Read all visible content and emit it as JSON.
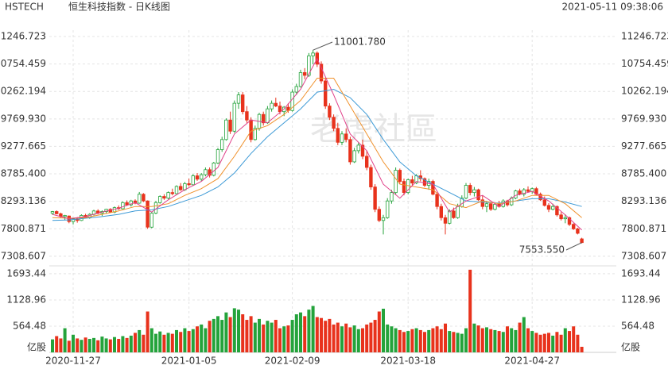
{
  "chart_data": {
    "type": "candlestick",
    "symbol": "HSTECH",
    "title": "恒生科技指数 - 日K线图",
    "timestamp": "2021-05-11 09:38:06",
    "watermark": "老虎社區",
    "up_color": "#24a33b",
    "down_color": "#e8321c",
    "grid": true,
    "ylim": [
      7165,
      11360
    ],
    "yticks": [
      11246.723,
      10754.459,
      10262.194,
      {
        "value": 9769.93,
        "label": "9769.930"
      },
      9277.665,
      {
        "value": 8785.4,
        "label": "8785.400"
      },
      8293.136,
      7800.871,
      7308.607
    ],
    "volume": {
      "ylim": [
        0,
        1846
      ],
      "yticks": [
        1693.44,
        1128.96,
        564.48
      ],
      "unit": "亿股",
      "values": [
        280,
        350,
        300,
        520,
        250,
        380,
        300,
        270,
        320,
        290,
        310,
        260,
        340,
        300,
        280,
        330,
        290,
        350,
        310,
        360,
        420,
        480,
        380,
        880,
        520,
        400,
        450,
        380,
        420,
        400,
        480,
        440,
        520,
        460,
        500,
        560,
        600,
        520,
        680,
        720,
        780,
        700,
        860,
        760,
        950,
        920,
        820,
        700,
        780,
        640,
        720,
        600,
        680,
        640,
        700,
        520,
        560,
        580,
        700,
        820,
        860,
        780,
        920,
        1000,
        760,
        740,
        680,
        720,
        600,
        640,
        560,
        620,
        540,
        580,
        500,
        520,
        600,
        640,
        700,
        880,
        940,
        600,
        560,
        520,
        480,
        440,
        460,
        500,
        520,
        480,
        440,
        480,
        520,
        560,
        500,
        620,
        460,
        440,
        420,
        400,
        520,
        1780,
        620,
        580,
        520,
        540,
        500,
        480,
        460,
        440,
        560,
        520,
        480,
        640,
        760,
        520,
        460,
        420,
        380,
        400,
        420,
        360,
        440,
        380,
        520,
        460,
        560,
        380,
        120
      ]
    },
    "categories": [
      null,
      null,
      null,
      null,
      null,
      "2020-11-27",
      null,
      null,
      null,
      null,
      null,
      null,
      null,
      null,
      null,
      null,
      null,
      null,
      null,
      null,
      null,
      null,
      null,
      null,
      null,
      null,
      null,
      null,
      null,
      null,
      null,
      null,
      null,
      "2021-01-05",
      null,
      null,
      null,
      null,
      null,
      null,
      null,
      null,
      null,
      null,
      null,
      null,
      null,
      null,
      null,
      null,
      null,
      null,
      null,
      null,
      null,
      null,
      null,
      null,
      "2021-02-09",
      null,
      null,
      null,
      null,
      null,
      null,
      null,
      null,
      null,
      null,
      null,
      null,
      null,
      null,
      null,
      null,
      null,
      null,
      null,
      null,
      null,
      null,
      null,
      null,
      null,
      null,
      null,
      "2021-03-18",
      null,
      null,
      null,
      null,
      null,
      null,
      null,
      null,
      null,
      null,
      null,
      null,
      null,
      null,
      null,
      null,
      null,
      null,
      null,
      null,
      null,
      null,
      null,
      null,
      null,
      null,
      null,
      null,
      null,
      "2021-04-27",
      null,
      null,
      null,
      null,
      null,
      null,
      null,
      null,
      null,
      null,
      null,
      null
    ],
    "candles": [
      [
        8080,
        8120,
        8050,
        8110
      ],
      [
        8110,
        8130,
        8060,
        8070
      ],
      [
        8070,
        8090,
        8000,
        8020
      ],
      [
        8020,
        8050,
        7960,
        8040
      ],
      [
        8030,
        8040,
        7900,
        7930
      ],
      [
        7930,
        7990,
        7880,
        7980
      ],
      [
        7980,
        8010,
        7910,
        7950
      ],
      [
        7950,
        8060,
        7940,
        8040
      ],
      [
        8040,
        8070,
        7990,
        8000
      ],
      [
        8000,
        8080,
        7980,
        8060
      ],
      [
        8060,
        8140,
        8040,
        8120
      ],
      [
        8120,
        8150,
        8060,
        8080
      ],
      [
        8080,
        8130,
        8030,
        8110
      ],
      [
        8110,
        8160,
        8080,
        8150
      ],
      [
        8150,
        8170,
        8090,
        8100
      ],
      [
        8100,
        8200,
        8080,
        8180
      ],
      [
        8180,
        8220,
        8140,
        8160
      ],
      [
        8160,
        8290,
        8150,
        8270
      ],
      [
        8270,
        8310,
        8210,
        8230
      ],
      [
        8230,
        8320,
        8200,
        8300
      ],
      [
        8300,
        8330,
        8240,
        8260
      ],
      [
        8260,
        8460,
        8250,
        8420
      ],
      [
        8420,
        8440,
        8280,
        8300
      ],
      [
        8300,
        8310,
        7800,
        7830
      ],
      [
        7830,
        8100,
        7810,
        8080
      ],
      [
        8080,
        8300,
        8060,
        8270
      ],
      [
        8270,
        8400,
        8250,
        8380
      ],
      [
        8380,
        8420,
        8320,
        8350
      ],
      [
        8350,
        8470,
        8330,
        8450
      ],
      [
        8450,
        8520,
        8400,
        8430
      ],
      [
        8430,
        8580,
        8420,
        8560
      ],
      [
        8560,
        8620,
        8480,
        8500
      ],
      [
        8500,
        8640,
        8480,
        8610
      ],
      [
        8610,
        8700,
        8560,
        8590
      ],
      [
        8590,
        8780,
        8570,
        8750
      ],
      [
        8750,
        8800,
        8660,
        8690
      ],
      [
        8690,
        8800,
        8650,
        8770
      ],
      [
        8770,
        8900,
        8740,
        8860
      ],
      [
        8860,
        8900,
        8720,
        8760
      ],
      [
        8760,
        9000,
        8740,
        8980
      ],
      [
        8980,
        9250,
        8960,
        9220
      ],
      [
        9220,
        9450,
        9180,
        9400
      ],
      [
        9400,
        9780,
        9380,
        9750
      ],
      [
        9750,
        9900,
        9500,
        9550
      ],
      [
        9550,
        10100,
        9520,
        10050
      ],
      [
        10050,
        10250,
        9950,
        10200
      ],
      [
        10200,
        10250,
        9850,
        9900
      ],
      [
        9900,
        10000,
        9700,
        9750
      ],
      [
        9750,
        9800,
        9350,
        9400
      ],
      [
        9400,
        9650,
        9380,
        9600
      ],
      [
        9600,
        9880,
        9560,
        9850
      ],
      [
        9850,
        9900,
        9650,
        9700
      ],
      [
        9700,
        10000,
        9680,
        9950
      ],
      [
        9950,
        10100,
        9900,
        10050
      ],
      [
        10050,
        10150,
        9980,
        10000
      ],
      [
        10000,
        10080,
        9850,
        9900
      ],
      [
        9900,
        10000,
        9820,
        9980
      ],
      [
        9980,
        10050,
        9880,
        9920
      ],
      [
        9920,
        10300,
        9900,
        10250
      ],
      [
        10250,
        10400,
        10200,
        10350
      ],
      [
        10350,
        10650,
        10330,
        10600
      ],
      [
        10600,
        10680,
        10480,
        10550
      ],
      [
        10550,
        10950,
        10520,
        10900
      ],
      [
        10900,
        11001.78,
        10750,
        10950
      ],
      [
        10950,
        10980,
        10700,
        10750
      ],
      [
        10750,
        10800,
        10400,
        10450
      ],
      [
        10450,
        10500,
        9950,
        10000
      ],
      [
        10000,
        10050,
        9750,
        9800
      ],
      [
        9800,
        9850,
        9550,
        9600
      ],
      [
        9600,
        9700,
        9300,
        9350
      ],
      [
        9350,
        9550,
        9300,
        9500
      ],
      [
        9500,
        9600,
        9350,
        9400
      ],
      [
        9400,
        9450,
        8950,
        9000
      ],
      [
        9000,
        9250,
        8980,
        9200
      ],
      [
        9200,
        9350,
        9150,
        9300
      ],
      [
        9300,
        9400,
        9050,
        9100
      ],
      [
        9100,
        9200,
        8850,
        8900
      ],
      [
        8900,
        8950,
        8500,
        8550
      ],
      [
        8550,
        8600,
        8100,
        8150
      ],
      [
        8150,
        8200,
        7920,
        7950
      ],
      [
        7950,
        8050,
        7700,
        8000
      ],
      [
        8000,
        8350,
        7980,
        8300
      ],
      [
        8300,
        8500,
        8250,
        8450
      ],
      [
        8450,
        8900,
        8420,
        8850
      ],
      [
        8850,
        8880,
        8600,
        8650
      ],
      [
        8650,
        8700,
        8400,
        8450
      ],
      [
        8450,
        8700,
        8420,
        8680
      ],
      [
        8680,
        8750,
        8580,
        8620
      ],
      [
        8620,
        8780,
        8600,
        8750
      ],
      [
        8750,
        8850,
        8650,
        8700
      ],
      [
        8700,
        8720,
        8550,
        8580
      ],
      [
        8580,
        8700,
        8500,
        8650
      ],
      [
        8650,
        8680,
        8400,
        8420
      ],
      [
        8420,
        8450,
        8150,
        8200
      ],
      [
        8200,
        8250,
        7950,
        8000
      ],
      [
        8000,
        8050,
        7700,
        7900
      ],
      [
        7900,
        8150,
        7880,
        8120
      ],
      [
        8120,
        8180,
        7980,
        8000
      ],
      [
        8000,
        8250,
        7980,
        8200
      ],
      [
        8200,
        8400,
        8180,
        8350
      ],
      [
        8350,
        8620,
        8330,
        8580
      ],
      [
        8580,
        8620,
        8400,
        8450
      ],
      [
        8450,
        8550,
        8380,
        8500
      ],
      [
        8500,
        8520,
        8300,
        8320
      ],
      [
        8320,
        8400,
        8150,
        8200
      ],
      [
        8200,
        8300,
        8100,
        8250
      ],
      [
        8250,
        8280,
        8120,
        8150
      ],
      [
        8150,
        8260,
        8130,
        8240
      ],
      [
        8240,
        8300,
        8180,
        8200
      ],
      [
        8200,
        8330,
        8180,
        8300
      ],
      [
        8300,
        8320,
        8200,
        8230
      ],
      [
        8230,
        8380,
        8210,
        8350
      ],
      [
        8350,
        8500,
        8330,
        8480
      ],
      [
        8480,
        8520,
        8400,
        8420
      ],
      [
        8420,
        8530,
        8380,
        8500
      ],
      [
        8500,
        8560,
        8450,
        8470
      ],
      [
        8470,
        8540,
        8430,
        8520
      ],
      [
        8520,
        8550,
        8400,
        8420
      ],
      [
        8420,
        8450,
        8300,
        8320
      ],
      [
        8320,
        8380,
        8200,
        8220
      ],
      [
        8220,
        8260,
        8100,
        8150
      ],
      [
        8150,
        8250,
        8130,
        8200
      ],
      [
        8200,
        8220,
        8020,
        8050
      ],
      [
        8050,
        8100,
        7950,
        7980
      ],
      [
        7980,
        8060,
        7900,
        8000
      ],
      [
        8000,
        8020,
        7850,
        7880
      ],
      [
        7880,
        7900,
        7780,
        7800
      ],
      [
        7800,
        7820,
        7700,
        7720
      ],
      [
        7620,
        7640,
        7540,
        7553.55
      ]
    ],
    "ma_x": [
      0,
      4,
      8,
      12,
      16,
      20,
      24,
      28,
      32,
      36,
      40,
      44,
      48,
      52,
      56,
      60,
      64,
      68,
      72,
      76,
      80,
      84,
      88,
      92,
      96,
      100,
      104,
      108,
      112,
      116,
      120,
      124,
      128
    ],
    "ma": [
      {
        "color": "#3d9ad6",
        "values": [
          7950,
          7960,
          7990,
          8020,
          8060,
          8120,
          8140,
          8200,
          8300,
          8400,
          8550,
          8800,
          9150,
          9450,
          9700,
          9950,
          10250,
          10300,
          10150,
          9850,
          9400,
          9000,
          8750,
          8600,
          8450,
          8300,
          8280,
          8260,
          8300,
          8340,
          8340,
          8280,
          8200
        ]
      },
      {
        "color": "#f0922d",
        "values": [
          8000,
          7990,
          8000,
          8060,
          8120,
          8200,
          8200,
          8250,
          8400,
          8520,
          8700,
          9100,
          9550,
          9650,
          9850,
          10100,
          10500,
          10500,
          10000,
          9500,
          9000,
          8600,
          8550,
          8500,
          8250,
          8180,
          8300,
          8250,
          8300,
          8400,
          8400,
          8250,
          8000
        ]
      },
      {
        "color": "#e0418a",
        "values": [
          8060,
          7980,
          8020,
          8100,
          8170,
          8270,
          8100,
          8320,
          8500,
          8650,
          8900,
          9500,
          9750,
          9700,
          9950,
          10300,
          10850,
          10200,
          9500,
          9200,
          8600,
          8350,
          8650,
          8600,
          8100,
          8300,
          8400,
          8200,
          8400,
          8470,
          8300,
          8050,
          7780
        ]
      }
    ],
    "annotations": [
      {
        "value": 11001.78,
        "label": "11001.780"
      },
      {
        "value": 7553.55,
        "label": "7553.550"
      }
    ]
  }
}
